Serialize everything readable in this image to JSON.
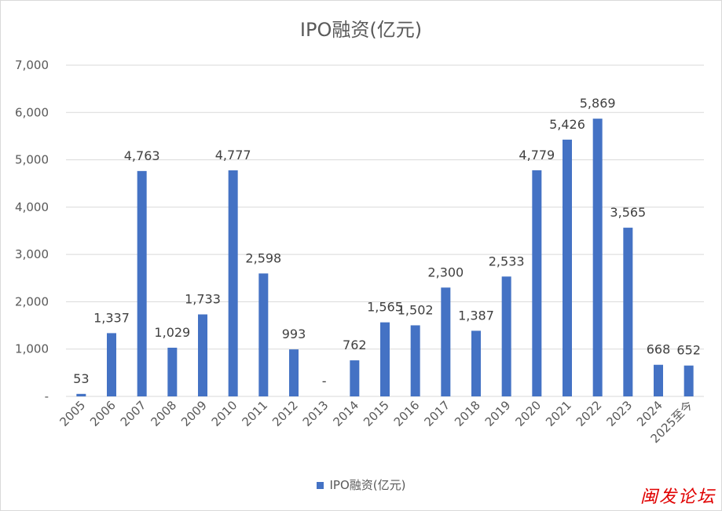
{
  "chart_data": {
    "type": "bar",
    "title": "IPO融资(亿元)",
    "xlabel": "",
    "ylabel": "",
    "categories": [
      "2005",
      "2006",
      "2007",
      "2008",
      "2009",
      "2010",
      "2011",
      "2012",
      "2013",
      "2014",
      "2015",
      "2016",
      "2017",
      "2018",
      "2019",
      "2020",
      "2021",
      "2022",
      "2023",
      "2024",
      "2025至今"
    ],
    "series": [
      {
        "name": "IPO融资(亿元)",
        "values": [
          53,
          1337,
          4763,
          1029,
          1733,
          4777,
          2598,
          993,
          0,
          762,
          1565,
          1502,
          2300,
          1387,
          2533,
          4779,
          5426,
          5869,
          3565,
          668,
          652
        ],
        "labels": [
          "53",
          "1,337",
          "4,763",
          "1,029",
          "1,733",
          "4,777",
          "2,598",
          "993",
          "-",
          "762",
          "1,565",
          "1,502",
          "2,300",
          "1,387",
          "2,533",
          "4,779",
          "5,426",
          "5,869",
          "3,565",
          "668",
          "652"
        ]
      }
    ],
    "ylim": [
      0,
      7000
    ],
    "yticks": [
      0,
      1000,
      2000,
      3000,
      4000,
      5000,
      6000,
      7000
    ],
    "ytick_labels": [
      "-",
      "1,000",
      "2,000",
      "3,000",
      "4,000",
      "5,000",
      "6,000",
      "7,000"
    ],
    "grid": true,
    "legend_position": "bottom",
    "bar_color": "#4472c4",
    "grid_color": "#d9d9d9"
  },
  "watermark_text": "闽发论坛"
}
